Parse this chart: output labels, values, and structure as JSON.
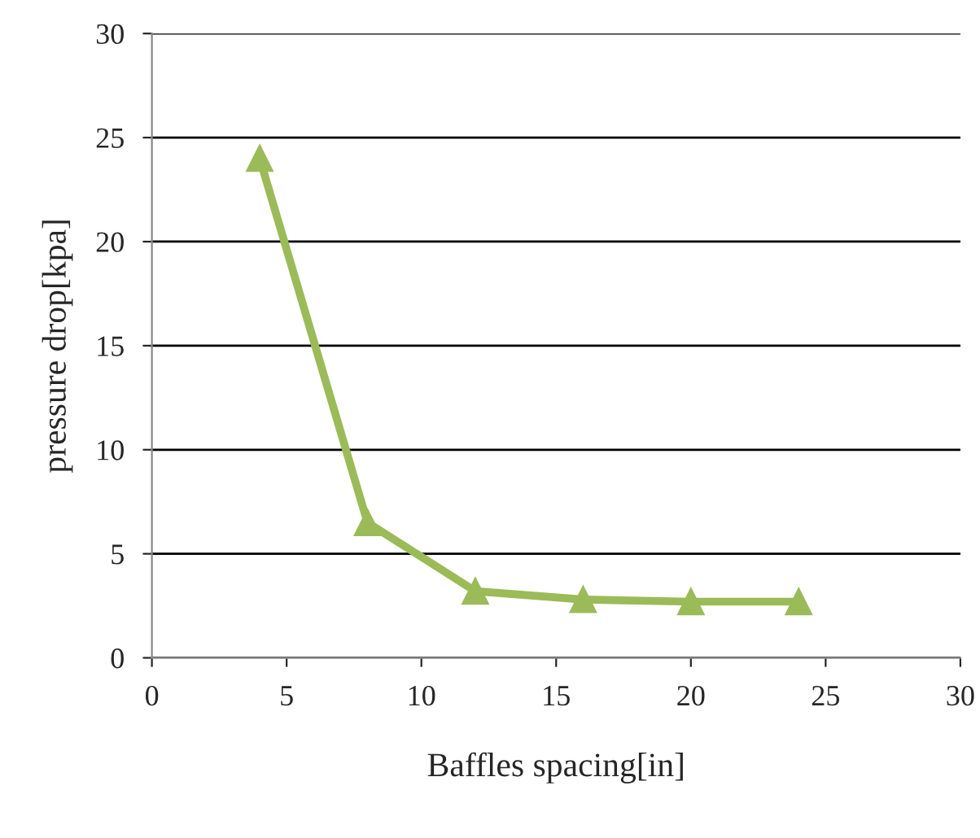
{
  "chart_data": {
    "type": "line",
    "xlabel": "Baffles spacing[in]",
    "ylabel": "pressure drop[kpa]",
    "x": [
      4,
      8,
      12,
      16,
      20,
      24
    ],
    "series": [
      {
        "color": "#9bbb59",
        "values": [
          24,
          6.5,
          3.2,
          2.8,
          2.7,
          2.7
        ]
      }
    ],
    "xlim": [
      0,
      30
    ],
    "xticks": [
      0,
      5,
      10,
      15,
      20,
      25,
      30
    ],
    "ylim": [
      0,
      30
    ],
    "yticks": [
      0,
      5,
      10,
      15,
      20,
      25,
      30
    ],
    "grid": "y",
    "marker": "triangle",
    "line_style": "solid",
    "legend": false
  }
}
